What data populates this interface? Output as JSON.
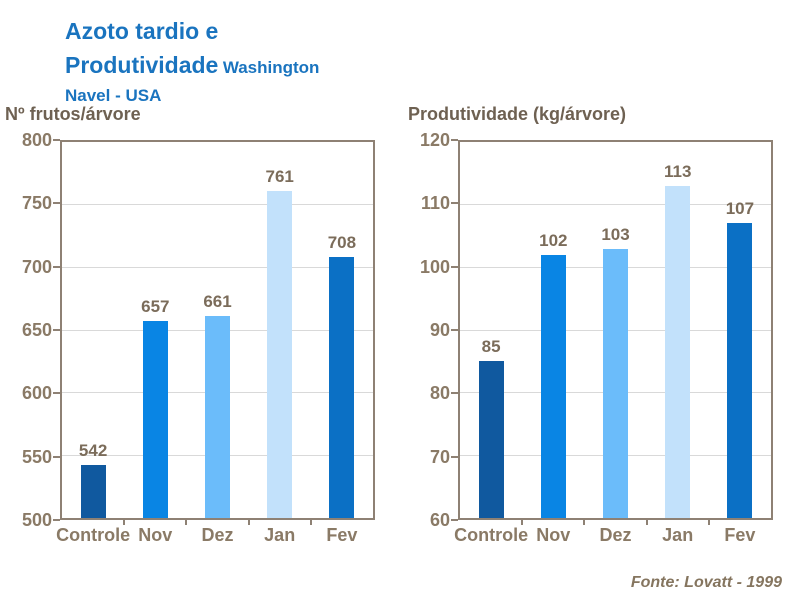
{
  "title": {
    "line1": "Azoto tardio e",
    "line2_big": "Produtividade",
    "line2_small": "Washington",
    "line3": "Navel - USA"
  },
  "footer": {
    "source": "Fonte: Lovatt - 1999"
  },
  "colors": {
    "title_blue": "#1a74bf",
    "header_brown": "#6e6152",
    "tick_brown": "#8a7a66",
    "value_brown": "#7b6c5a",
    "frame": "#8e8174",
    "gridline": "#d9d9d9",
    "bar_controle": "#10599f",
    "bar_nov": "#0985e4",
    "bar_dez": "#6bbcfa",
    "bar_jan": "#c2e1fb",
    "bar_fev": "#0b70c5"
  },
  "chart_data": [
    {
      "type": "bar",
      "title": "Nº frutos/árvore",
      "categories": [
        "Controle",
        "Nov",
        "Dez",
        "Jan",
        "Fev"
      ],
      "values": [
        542,
        657,
        661,
        761,
        708
      ],
      "ylim": [
        500,
        800
      ],
      "ytick_step": 50,
      "grid": true,
      "legend": "none",
      "bar_colors": [
        "#10599f",
        "#0985e4",
        "#6bbcfa",
        "#c2e1fb",
        "#0b70c5"
      ]
    },
    {
      "type": "bar",
      "title": "Produtividade (kg/árvore)",
      "categories": [
        "Controle",
        "Nov",
        "Dez",
        "Jan",
        "Fev"
      ],
      "values": [
        85,
        102,
        103,
        113,
        107
      ],
      "ylim": [
        60,
        120
      ],
      "ytick_step": 10,
      "grid": true,
      "legend": "none",
      "bar_colors": [
        "#10599f",
        "#0985e4",
        "#6bbcfa",
        "#c2e1fb",
        "#0b70c5"
      ]
    }
  ]
}
